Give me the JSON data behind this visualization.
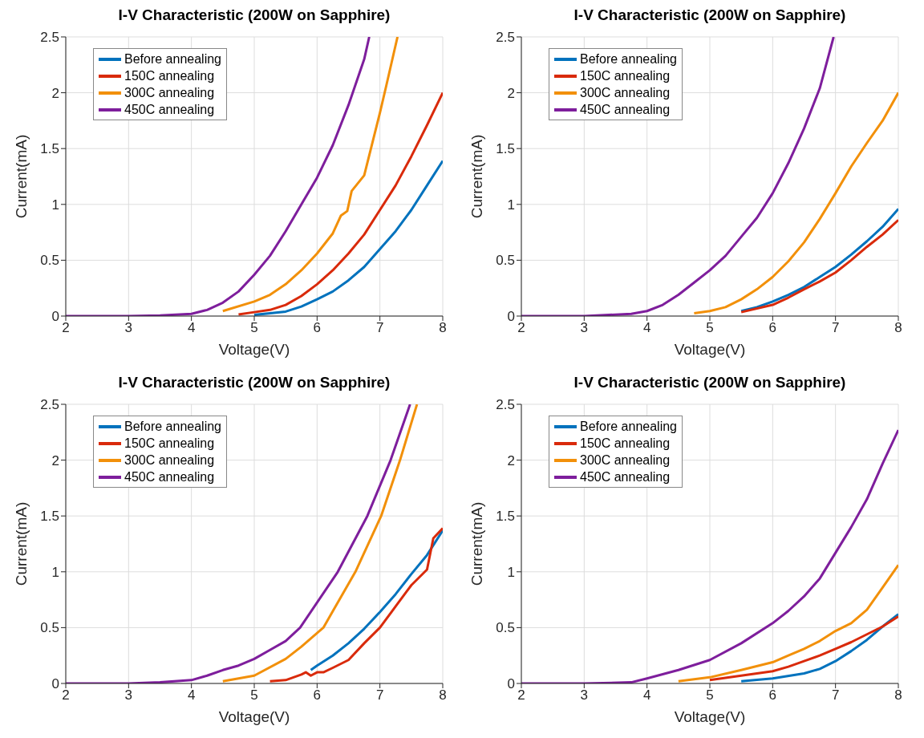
{
  "chart_data": [
    {
      "type": "line",
      "title": "I-V Characteristic (200W on Sapphire)",
      "xlabel": "Voltage(V)",
      "ylabel": "Current(mA)",
      "xlim": [
        2,
        8
      ],
      "ylim": [
        0,
        2.5
      ],
      "xticks": [
        2,
        3,
        4,
        5,
        6,
        7,
        8
      ],
      "yticks": [
        0,
        0.5,
        1,
        1.5,
        2,
        2.5
      ],
      "grid": true,
      "legend": "top left",
      "marker": "none",
      "line_style": "solid",
      "series": [
        {
          "name": "Before annealing",
          "color": "#0072bd",
          "x": [
            5,
            5.5,
            5.75,
            6,
            6.25,
            6.5,
            6.75,
            7,
            7.25,
            7.5,
            7.75,
            8
          ],
          "values": [
            0.01,
            0.04,
            0.085,
            0.15,
            0.22,
            0.32,
            0.44,
            0.6,
            0.76,
            0.95,
            1.17,
            1.39
          ]
        },
        {
          "name": "150C annealing",
          "color": "#d92a0b",
          "x": [
            4.75,
            5,
            5.25,
            5.5,
            5.75,
            6,
            6.25,
            6.5,
            6.75,
            7,
            7.25,
            7.5,
            7.75,
            8
          ],
          "values": [
            0.015,
            0.035,
            0.055,
            0.1,
            0.18,
            0.285,
            0.41,
            0.56,
            0.73,
            0.95,
            1.17,
            1.43,
            1.71,
            2.0
          ]
        },
        {
          "name": "300C annealing",
          "color": "#f2900a",
          "x": [
            4.5,
            5,
            5.25,
            5.5,
            5.75,
            6,
            6.25,
            6.38,
            6.48,
            6.55,
            6.75,
            7,
            7.1,
            7.28
          ],
          "values": [
            0.045,
            0.13,
            0.19,
            0.285,
            0.41,
            0.56,
            0.74,
            0.9,
            0.94,
            1.12,
            1.26,
            1.82,
            2.06,
            2.5
          ]
        },
        {
          "name": "450C annealing",
          "color": "#7e1e9c",
          "x": [
            2,
            3,
            3.5,
            4,
            4.25,
            4.5,
            4.75,
            5,
            5.25,
            5.5,
            5.75,
            6,
            6.25,
            6.5,
            6.75,
            6.83
          ],
          "values": [
            0,
            0,
            0.005,
            0.02,
            0.055,
            0.12,
            0.22,
            0.37,
            0.54,
            0.76,
            1.0,
            1.24,
            1.53,
            1.89,
            2.3,
            2.5
          ]
        }
      ]
    },
    {
      "type": "line",
      "title": "I-V Characteristic (200W on Sapphire)",
      "xlabel": "Voltage(V)",
      "ylabel": "Current(mA)",
      "xlim": [
        2,
        8
      ],
      "ylim": [
        0,
        2.5
      ],
      "xticks": [
        2,
        3,
        4,
        5,
        6,
        7,
        8
      ],
      "yticks": [
        0,
        0.5,
        1,
        1.5,
        2,
        2.5
      ],
      "grid": true,
      "legend": "top left",
      "marker": "none",
      "line_style": "solid",
      "series": [
        {
          "name": "Before annealing",
          "color": "#0072bd",
          "x": [
            5.5,
            5.75,
            6,
            6.25,
            6.5,
            6.75,
            7,
            7.25,
            7.5,
            7.75,
            8
          ],
          "values": [
            0.045,
            0.08,
            0.13,
            0.19,
            0.26,
            0.35,
            0.44,
            0.55,
            0.67,
            0.8,
            0.96
          ]
        },
        {
          "name": "150C annealing",
          "color": "#d92a0b",
          "x": [
            5.5,
            6,
            6.25,
            6.5,
            6.75,
            7,
            7.25,
            7.5,
            7.75,
            8
          ],
          "values": [
            0.035,
            0.1,
            0.165,
            0.24,
            0.31,
            0.39,
            0.5,
            0.62,
            0.73,
            0.86
          ]
        },
        {
          "name": "300C annealing",
          "color": "#f2900a",
          "x": [
            4.75,
            5,
            5.25,
            5.5,
            5.75,
            6,
            6.25,
            6.5,
            6.75,
            7,
            7.25,
            7.5,
            7.75,
            8
          ],
          "values": [
            0.025,
            0.045,
            0.08,
            0.15,
            0.24,
            0.35,
            0.49,
            0.66,
            0.87,
            1.1,
            1.34,
            1.55,
            1.75,
            2.0
          ]
        },
        {
          "name": "450C annealing",
          "color": "#7e1e9c",
          "x": [
            2,
            3,
            3.75,
            4,
            4.25,
            4.5,
            4.75,
            5,
            5.25,
            5.5,
            5.75,
            6,
            6.25,
            6.5,
            6.75,
            6.97
          ],
          "values": [
            0,
            0,
            0.02,
            0.045,
            0.1,
            0.19,
            0.3,
            0.41,
            0.54,
            0.71,
            0.88,
            1.1,
            1.37,
            1.68,
            2.04,
            2.5
          ]
        }
      ]
    },
    {
      "type": "line",
      "title": "I-V Characteristic (200W on Sapphire)",
      "xlabel": "Voltage(V)",
      "ylabel": "Current(mA)",
      "xlim": [
        2,
        8
      ],
      "ylim": [
        0,
        2.5
      ],
      "xticks": [
        2,
        3,
        4,
        5,
        6,
        7,
        8
      ],
      "yticks": [
        0,
        0.5,
        1,
        1.5,
        2,
        2.5
      ],
      "grid": true,
      "legend": "top left",
      "marker": "none",
      "line_style": "solid",
      "series": [
        {
          "name": "Before annealing",
          "color": "#0072bd",
          "x": [
            5.9,
            6,
            6.25,
            6.5,
            6.75,
            7,
            7.25,
            7.5,
            7.75,
            8
          ],
          "values": [
            0.12,
            0.16,
            0.25,
            0.36,
            0.49,
            0.64,
            0.8,
            0.98,
            1.15,
            1.37
          ]
        },
        {
          "name": "150C annealing",
          "color": "#d92a0b",
          "x": [
            5.25,
            5.5,
            5.75,
            5.82,
            5.9,
            6,
            6.1,
            6.25,
            6.5,
            6.75,
            7,
            7.25,
            7.5,
            7.75,
            7.85,
            8
          ],
          "values": [
            0.02,
            0.03,
            0.08,
            0.1,
            0.07,
            0.1,
            0.1,
            0.14,
            0.21,
            0.36,
            0.5,
            0.69,
            0.88,
            1.02,
            1.3,
            1.39
          ]
        },
        {
          "name": "300C annealing",
          "color": "#f2900a",
          "x": [
            4.5,
            5,
            5.5,
            5.75,
            6.1,
            6.61,
            7.02,
            7.32,
            7.59
          ],
          "values": [
            0.02,
            0.07,
            0.22,
            0.33,
            0.5,
            1.0,
            1.5,
            2.0,
            2.5
          ]
        },
        {
          "name": "450C annealing",
          "color": "#7e1e9c",
          "x": [
            2,
            3,
            3.5,
            4,
            4.25,
            4.5,
            4.75,
            5,
            5.25,
            5.5,
            5.73,
            6.33,
            6.8,
            7.17,
            7.48
          ],
          "values": [
            0,
            0,
            0.01,
            0.03,
            0.07,
            0.12,
            0.16,
            0.22,
            0.3,
            0.38,
            0.5,
            1.0,
            1.5,
            2.0,
            2.5
          ]
        }
      ]
    },
    {
      "type": "line",
      "title": "I-V Characteristic (200W on Sapphire)",
      "xlabel": "Voltage(V)",
      "ylabel": "Current(mA)",
      "xlim": [
        2,
        8
      ],
      "ylim": [
        0,
        2.5
      ],
      "xticks": [
        2,
        3,
        4,
        5,
        6,
        7,
        8
      ],
      "yticks": [
        0,
        0.5,
        1,
        1.5,
        2,
        2.5
      ],
      "grid": true,
      "legend": "top left",
      "marker": "none",
      "line_style": "solid",
      "series": [
        {
          "name": "Before annealing",
          "color": "#0072bd",
          "x": [
            5.5,
            6,
            6.5,
            6.75,
            7,
            7.25,
            7.5,
            7.75,
            8
          ],
          "values": [
            0.02,
            0.045,
            0.09,
            0.13,
            0.2,
            0.29,
            0.39,
            0.51,
            0.62
          ]
        },
        {
          "name": "150C annealing",
          "color": "#d92a0b",
          "x": [
            5,
            5.5,
            6,
            6.25,
            6.5,
            6.75,
            7,
            7.25,
            7.5,
            7.75,
            8
          ],
          "values": [
            0.03,
            0.07,
            0.11,
            0.15,
            0.2,
            0.25,
            0.31,
            0.37,
            0.44,
            0.51,
            0.6
          ]
        },
        {
          "name": "300C annealing",
          "color": "#f2900a",
          "x": [
            4.5,
            5,
            5.5,
            6,
            6.25,
            6.5,
            6.75,
            7,
            7.25,
            7.5,
            7.75,
            8
          ],
          "values": [
            0.02,
            0.055,
            0.12,
            0.19,
            0.25,
            0.31,
            0.38,
            0.47,
            0.54,
            0.66,
            0.86,
            1.06
          ]
        },
        {
          "name": "450C annealing",
          "color": "#7e1e9c",
          "x": [
            2,
            3,
            3.75,
            4,
            4.5,
            5,
            5.5,
            6,
            6.25,
            6.5,
            6.75,
            7,
            7.25,
            7.5,
            7.75,
            8
          ],
          "values": [
            0,
            0,
            0.01,
            0.045,
            0.12,
            0.21,
            0.36,
            0.54,
            0.65,
            0.78,
            0.94,
            1.17,
            1.4,
            1.65,
            1.97,
            2.27
          ]
        }
      ]
    }
  ]
}
